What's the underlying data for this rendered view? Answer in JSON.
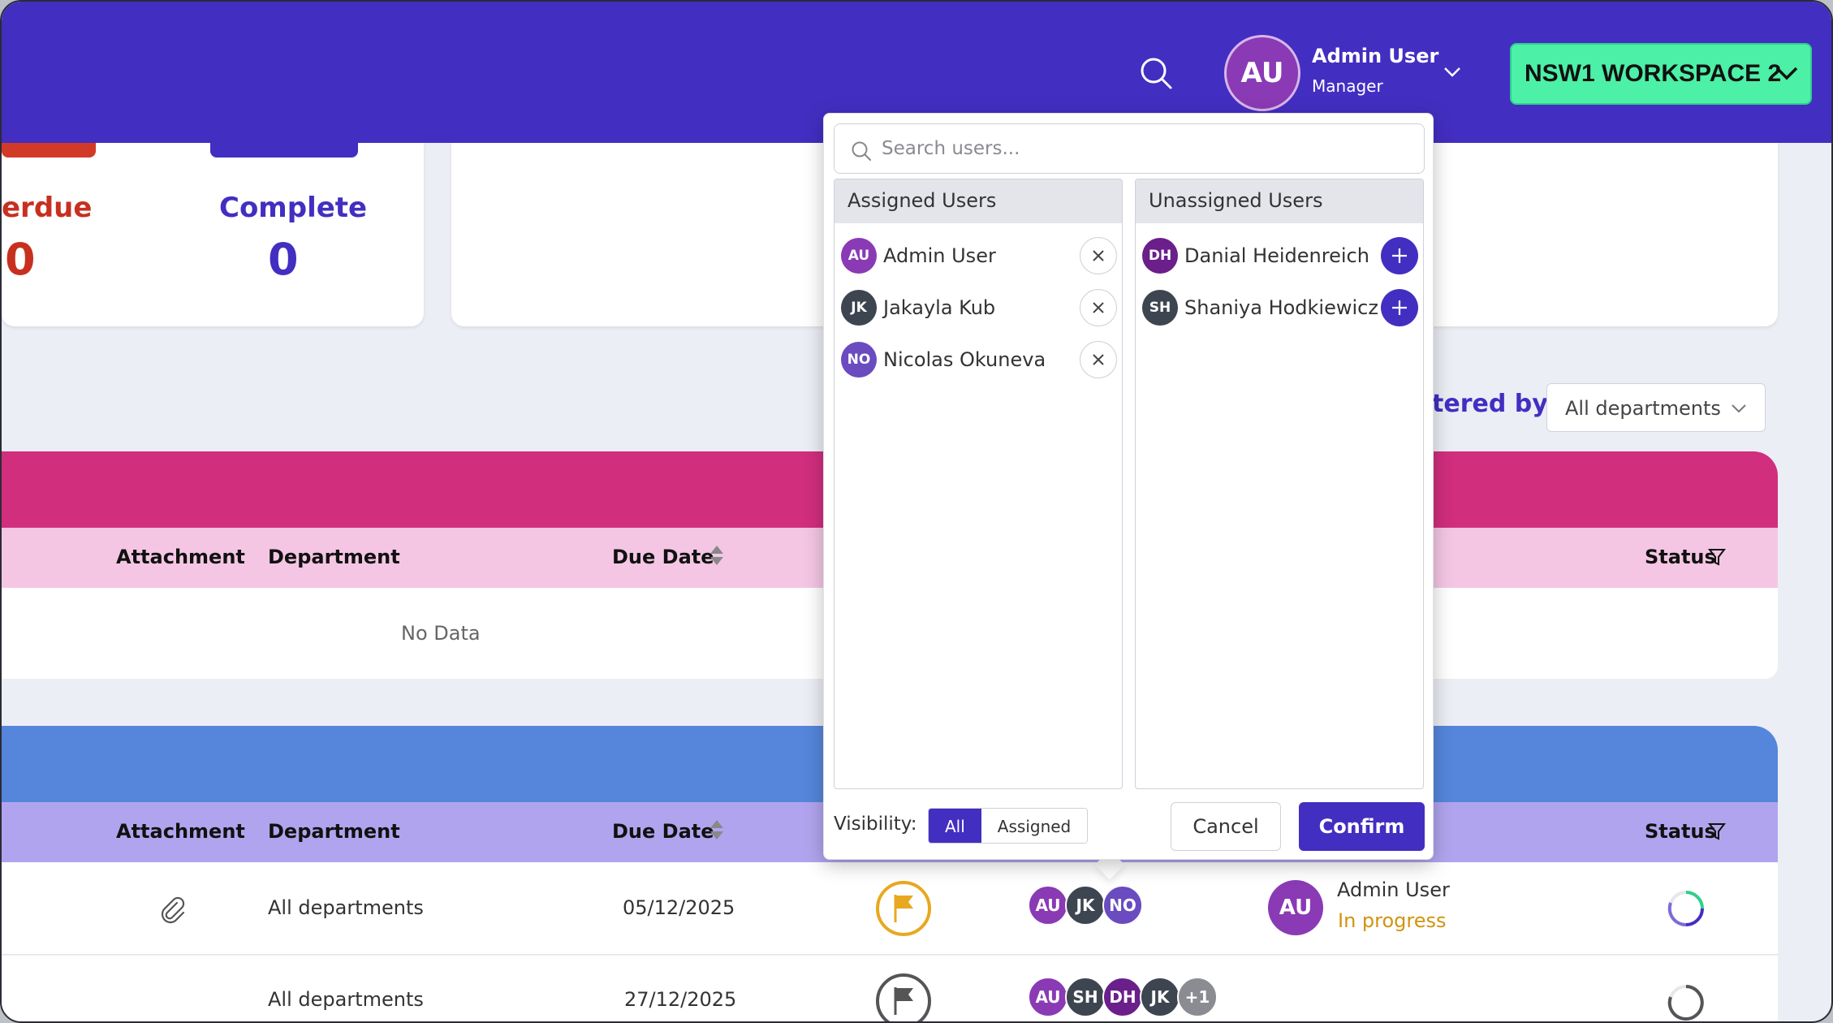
{
  "header": {
    "user_initials": "AU",
    "user_name": "Admin User",
    "user_role": "Manager",
    "workspace_label": "NSW1 WORKSPACE 2",
    "colors": {
      "bar": "#432ec2",
      "workspace": "#4cf0a7"
    }
  },
  "stats": {
    "overdue_label": "erdue",
    "overdue_value": "0",
    "complete_label": "Complete",
    "complete_value": "0"
  },
  "filter": {
    "label": "tered by:",
    "selected": "All departments"
  },
  "table1": {
    "columns": {
      "attachment": "Attachment",
      "department": "Department",
      "due_date": "Due Date",
      "status": "Status"
    },
    "empty_text": "No Data"
  },
  "table2": {
    "columns": {
      "attachment": "Attachment",
      "department": "Department",
      "due_date": "Due Date",
      "status": "Status"
    },
    "rows": [
      {
        "department": "All departments",
        "due_date": "05/12/2025",
        "assignees": [
          "AU",
          "JK",
          "NO"
        ],
        "status_user_initials": "AU",
        "status_user": "Admin User",
        "status_text": "In progress"
      },
      {
        "department": "All departments",
        "due_date": "27/12/2025",
        "assignees": [
          "AU",
          "SH",
          "DH",
          "JK",
          "+1"
        ]
      }
    ]
  },
  "popup": {
    "search_placeholder": "Search users...",
    "assigned_title": "Assigned Users",
    "unassigned_title": "Unassigned Users",
    "assigned": [
      {
        "initials": "AU",
        "name": "Admin User",
        "color": "#8a3ab5"
      },
      {
        "initials": "JK",
        "name": "Jakayla Kub",
        "color": "#3d4550"
      },
      {
        "initials": "NO",
        "name": "Nicolas Okuneva",
        "color": "#6a4bc0"
      }
    ],
    "unassigned": [
      {
        "initials": "DH",
        "name": "Danial Heidenreich",
        "color": "#6a1f8a"
      },
      {
        "initials": "SH",
        "name": "Shaniya Hodkiewicz",
        "color": "#3d4550"
      }
    ],
    "visibility_label": "Visibility:",
    "visibility_options": [
      "All",
      "Assigned"
    ],
    "visibility_selected": "All",
    "cancel_label": "Cancel",
    "confirm_label": "Confirm"
  }
}
